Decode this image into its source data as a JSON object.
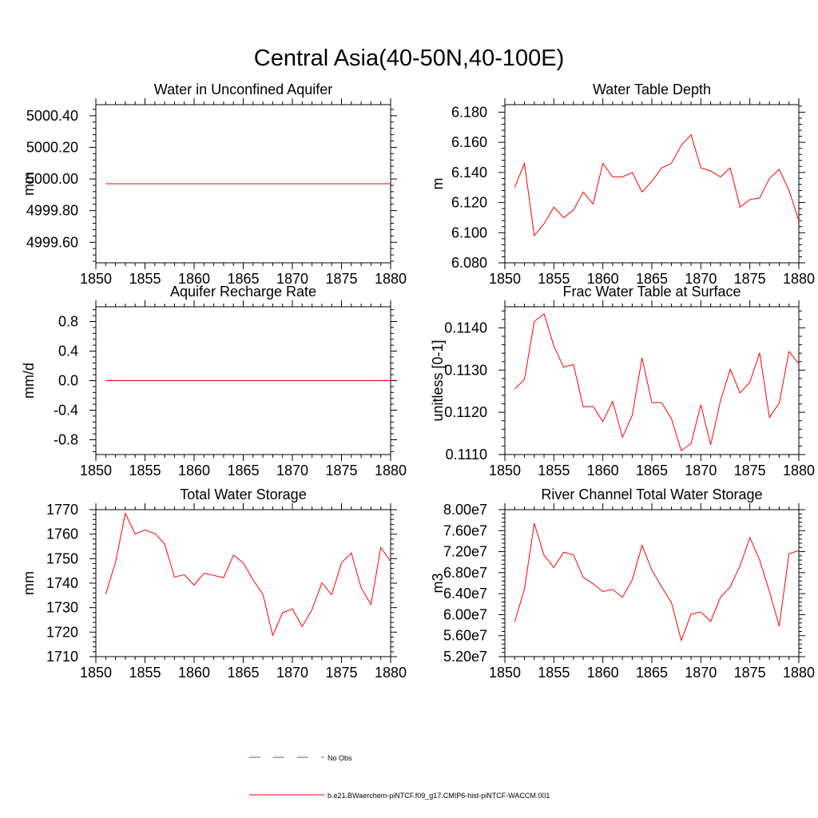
{
  "figure": {
    "title": "Central Asia(40-50N,40-100E)"
  },
  "legend": {
    "entries": [
      {
        "label": "No Obs",
        "color": "#5a5ab4",
        "dash": "dashed"
      },
      {
        "label": "b.e21.BWaerchem-piNTCF.f09_g17.CMIP6-hist-piNTCF-WACCM.001",
        "color": "#ff0000",
        "dash": "solid"
      }
    ]
  },
  "chart_data": [
    {
      "type": "line",
      "title": "Water in Unconfined Aquifer",
      "xlabel": "",
      "ylabel": "mm",
      "xlim": [
        1850,
        1880
      ],
      "ylim": [
        4999.47,
        5000.47
      ],
      "xticks": [
        1850,
        1855,
        1860,
        1865,
        1870,
        1875,
        1880
      ],
      "xticklabels": [
        "1850",
        "1855",
        "1860",
        "1865",
        "1870",
        "1875",
        "1880"
      ],
      "yticks": [
        4999.6,
        4999.8,
        5000.0,
        5000.2,
        5000.4
      ],
      "yticklabels": [
        "4999.60",
        "4999.80",
        "5000.00",
        "5000.20",
        "5000.40"
      ],
      "series": [
        {
          "color": "#ff0000",
          "x": [
            1851,
            1852,
            1853,
            1854,
            1855,
            1856,
            1857,
            1858,
            1859,
            1860,
            1861,
            1862,
            1863,
            1864,
            1865,
            1866,
            1867,
            1868,
            1869,
            1870,
            1871,
            1872,
            1873,
            1874,
            1875,
            1876,
            1877,
            1878,
            1879,
            1880
          ],
          "y": [
            4999.97,
            4999.97,
            4999.97,
            4999.97,
            4999.97,
            4999.97,
            4999.97,
            4999.97,
            4999.97,
            4999.97,
            4999.97,
            4999.97,
            4999.97,
            4999.97,
            4999.97,
            4999.97,
            4999.97,
            4999.97,
            4999.97,
            4999.97,
            4999.97,
            4999.97,
            4999.97,
            4999.97,
            4999.97,
            4999.97,
            4999.97,
            4999.97,
            4999.97,
            4999.97
          ]
        }
      ]
    },
    {
      "type": "line",
      "title": "Water Table Depth",
      "xlabel": "",
      "ylabel": "m",
      "xlim": [
        1850,
        1880
      ],
      "ylim": [
        6.08,
        6.185
      ],
      "xticks": [
        1850,
        1855,
        1860,
        1865,
        1870,
        1875,
        1880
      ],
      "xticklabels": [
        "1850",
        "1855",
        "1860",
        "1865",
        "1870",
        "1875",
        "1880"
      ],
      "yticks": [
        6.08,
        6.1,
        6.12,
        6.14,
        6.16,
        6.18
      ],
      "yticklabels": [
        "6.080",
        "6.100",
        "6.120",
        "6.140",
        "6.160",
        "6.180"
      ],
      "series": [
        {
          "color": "#ff0000",
          "x": [
            1851,
            1852,
            1853,
            1854,
            1855,
            1856,
            1857,
            1858,
            1859,
            1860,
            1861,
            1862,
            1863,
            1864,
            1865,
            1866,
            1867,
            1868,
            1869,
            1870,
            1871,
            1872,
            1873,
            1874,
            1875,
            1876,
            1877,
            1878,
            1879,
            1880
          ],
          "y": [
            6.13,
            6.146,
            6.098,
            6.106,
            6.117,
            6.11,
            6.115,
            6.127,
            6.119,
            6.146,
            6.137,
            6.137,
            6.14,
            6.127,
            6.134,
            6.143,
            6.146,
            6.158,
            6.165,
            6.143,
            6.141,
            6.137,
            6.143,
            6.117,
            6.122,
            6.123,
            6.136,
            6.142,
            6.128,
            6.108
          ]
        }
      ]
    },
    {
      "type": "line",
      "title": "Aquifer Recharge Rate",
      "xlabel": "",
      "ylabel": "mm/d",
      "xlim": [
        1850,
        1880
      ],
      "ylim": [
        -1.0,
        1.0
      ],
      "xticks": [
        1850,
        1855,
        1860,
        1865,
        1870,
        1875,
        1880
      ],
      "xticklabels": [
        "1850",
        "1855",
        "1860",
        "1865",
        "1870",
        "1875",
        "1880"
      ],
      "yticks": [
        -0.8,
        -0.4,
        0.0,
        0.4,
        0.8
      ],
      "yticklabels": [
        "-0.8",
        "-0.4",
        "0.0",
        "0.4",
        "0.8"
      ],
      "series": [
        {
          "color": "#ff0000",
          "x": [
            1851,
            1852,
            1853,
            1854,
            1855,
            1856,
            1857,
            1858,
            1859,
            1860,
            1861,
            1862,
            1863,
            1864,
            1865,
            1866,
            1867,
            1868,
            1869,
            1870,
            1871,
            1872,
            1873,
            1874,
            1875,
            1876,
            1877,
            1878,
            1879,
            1880
          ],
          "y": [
            0.0,
            0.0,
            0.0,
            0.0,
            0.0,
            0.0,
            0.0,
            0.0,
            0.0,
            0.0,
            0.0,
            0.0,
            0.0,
            0.0,
            0.0,
            0.0,
            0.0,
            0.0,
            0.0,
            0.0,
            0.0,
            0.0,
            0.0,
            0.0,
            0.0,
            0.0,
            0.0,
            0.0,
            0.0,
            0.0
          ]
        }
      ]
    },
    {
      "type": "line",
      "title": "Frac Water Table at Surface",
      "xlabel": "",
      "ylabel": "unitless [0-1]",
      "xlim": [
        1850,
        1880
      ],
      "ylim": [
        0.111,
        0.1145
      ],
      "xticks": [
        1850,
        1855,
        1860,
        1865,
        1870,
        1875,
        1880
      ],
      "xticklabels": [
        "1850",
        "1855",
        "1860",
        "1865",
        "1870",
        "1875",
        "1880"
      ],
      "yticks": [
        0.111,
        0.112,
        0.113,
        0.114
      ],
      "yticklabels": [
        "0.1110",
        "0.1120",
        "0.1130",
        "0.1140"
      ],
      "series": [
        {
          "color": "#ff0000",
          "x": [
            1851,
            1852,
            1853,
            1854,
            1855,
            1856,
            1857,
            1858,
            1859,
            1860,
            1861,
            1862,
            1863,
            1864,
            1865,
            1866,
            1867,
            1868,
            1869,
            1870,
            1871,
            1872,
            1873,
            1874,
            1875,
            1876,
            1877,
            1878,
            1879,
            1880
          ],
          "y": [
            0.11255,
            0.11278,
            0.11415,
            0.11433,
            0.11357,
            0.11307,
            0.11313,
            0.11213,
            0.11214,
            0.11178,
            0.11226,
            0.11141,
            0.11193,
            0.11329,
            0.11223,
            0.11223,
            0.11185,
            0.11109,
            0.11126,
            0.11218,
            0.11123,
            0.11227,
            0.11302,
            0.11246,
            0.11271,
            0.11341,
            0.11188,
            0.11222,
            0.11344,
            0.11315
          ]
        }
      ]
    },
    {
      "type": "line",
      "title": "Total Water Storage",
      "xlabel": "",
      "ylabel": "mm",
      "xlim": [
        1850,
        1880
      ],
      "ylim": [
        1710,
        1770
      ],
      "xticks": [
        1850,
        1855,
        1860,
        1865,
        1870,
        1875,
        1880
      ],
      "xticklabels": [
        "1850",
        "1855",
        "1860",
        "1865",
        "1870",
        "1875",
        "1880"
      ],
      "yticks": [
        1710,
        1720,
        1730,
        1740,
        1750,
        1760,
        1770
      ],
      "yticklabels": [
        "1710",
        "1720",
        "1730",
        "1740",
        "1750",
        "1760",
        "1770"
      ],
      "series": [
        {
          "color": "#ff0000",
          "x": [
            1851,
            1852,
            1853,
            1854,
            1855,
            1856,
            1857,
            1858,
            1859,
            1860,
            1861,
            1862,
            1863,
            1864,
            1865,
            1866,
            1867,
            1868,
            1869,
            1870,
            1871,
            1872,
            1873,
            1874,
            1875,
            1876,
            1877,
            1878,
            1879,
            1880
          ],
          "y": [
            1735.5,
            1748.5,
            1768.5,
            1760.0,
            1761.7,
            1760.3,
            1756.0,
            1742.5,
            1743.4,
            1739.2,
            1744.0,
            1743.2,
            1742.2,
            1751.4,
            1748.3,
            1741.3,
            1735.5,
            1718.7,
            1727.9,
            1729.5,
            1722.3,
            1729.2,
            1740.1,
            1735.3,
            1748.3,
            1752.3,
            1738.1,
            1731.3,
            1754.6,
            1748.8
          ]
        }
      ]
    },
    {
      "type": "line",
      "title": "River Channel Total Water Storage",
      "xlabel": "",
      "ylabel": "m3",
      "xlim": [
        1850,
        1880
      ],
      "ylim": [
        52000000,
        80000000
      ],
      "xticks": [
        1850,
        1855,
        1860,
        1865,
        1870,
        1875,
        1880
      ],
      "xticklabels": [
        "1850",
        "1855",
        "1860",
        "1865",
        "1870",
        "1875",
        "1880"
      ],
      "yticks": [
        52000000,
        56000000,
        60000000,
        64000000,
        68000000,
        72000000,
        76000000,
        80000000
      ],
      "yticklabels": [
        "5.20e7",
        "5.60e7",
        "6.00e7",
        "6.40e7",
        "6.80e7",
        "7.20e7",
        "7.60e7",
        "8.00e7"
      ],
      "series": [
        {
          "color": "#ff0000",
          "x": [
            1851,
            1852,
            1853,
            1854,
            1855,
            1856,
            1857,
            1858,
            1859,
            1860,
            1861,
            1862,
            1863,
            1864,
            1865,
            1866,
            1867,
            1868,
            1869,
            1870,
            1871,
            1872,
            1873,
            1874,
            1875,
            1876,
            1877,
            1878,
            1879,
            1880
          ],
          "y": [
            58600000,
            64900000,
            77400000,
            71300000,
            69000000,
            71900000,
            71400000,
            67100000,
            65900000,
            64400000,
            64800000,
            63300000,
            66600000,
            73200000,
            68500000,
            65300000,
            62300000,
            55100000,
            60100000,
            60500000,
            58700000,
            63300000,
            65300000,
            69300000,
            74700000,
            70400000,
            64400000,
            57800000,
            71600000,
            72200000
          ]
        }
      ]
    }
  ]
}
